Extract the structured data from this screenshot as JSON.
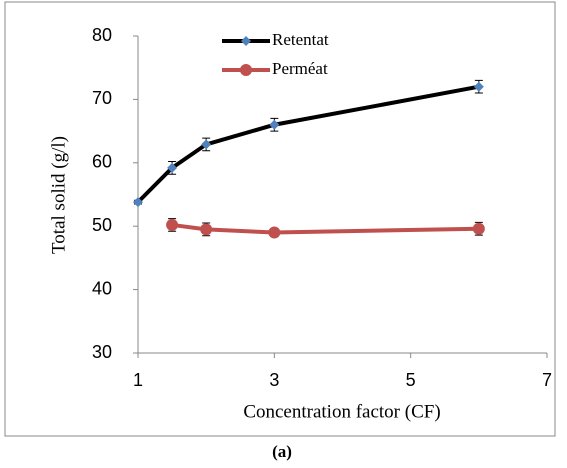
{
  "chart_data": {
    "type": "line",
    "x_label": "Concentration factor (CF)",
    "y_label": "Total solid (g/l)",
    "caption": "(a)",
    "xlim": [
      1,
      7
    ],
    "xticks": [
      1,
      3,
      5,
      7
    ],
    "ylim": [
      30,
      80
    ],
    "yticks": [
      30,
      40,
      50,
      60,
      70,
      80
    ],
    "legend": "top-left",
    "series": [
      {
        "name": "Retentat",
        "color": "#000000",
        "marker_color": "#4f81bd",
        "marker": "diamond",
        "x": [
          1,
          1.5,
          2,
          3,
          6
        ],
        "values": [
          53.8,
          59.2,
          62.9,
          66,
          72
        ],
        "errors": [
          0.3,
          1,
          1,
          1,
          1
        ]
      },
      {
        "name": "Perméat",
        "color": "#c0504d",
        "marker_color": "#c0504d",
        "marker": "circle",
        "x": [
          1.5,
          2,
          3,
          6
        ],
        "values": [
          50.2,
          49.5,
          49,
          49.6
        ],
        "errors": [
          1,
          1,
          0.5,
          1
        ]
      }
    ]
  }
}
